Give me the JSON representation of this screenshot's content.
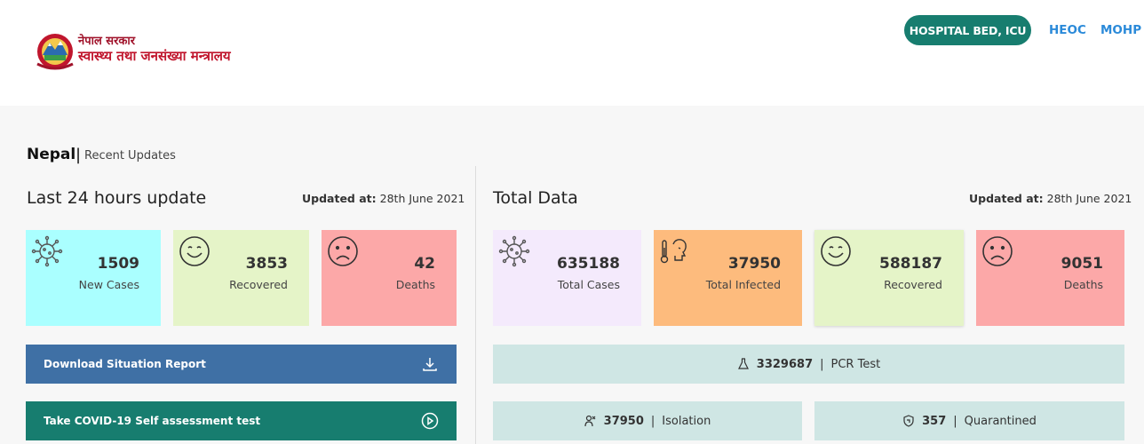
{
  "header": {
    "logo_line1": "नेपाल सरकार",
    "logo_line2": "स्वास्थ्य तथा जनसंख्या मन्त्रालय",
    "nav": {
      "hospital": "HOSPITAL BED, ICU",
      "heoc": "HEOC",
      "mohp": "MOHP"
    }
  },
  "section": {
    "title": "Nepal",
    "separator": "|",
    "subtitle": "Recent Updates"
  },
  "last24": {
    "title": "Last 24 hours update",
    "updated_label": "Updated at:",
    "updated_value": "28th June 2021",
    "cards": [
      {
        "value": "1509",
        "label": "New Cases",
        "color": "#aaffff",
        "icon": "virus-icon"
      },
      {
        "value": "3853",
        "label": "Recovered",
        "color": "#e5f4c8",
        "icon": "smile-icon"
      },
      {
        "value": "42",
        "label": "Deaths",
        "color": "#fca8a8",
        "icon": "sad-icon"
      }
    ],
    "download_label": "Download Situation Report",
    "selftest_label": "Take COVID-19 Self assessment test"
  },
  "total": {
    "title": "Total Data",
    "updated_label": "Updated at:",
    "updated_value": "28th June 2021",
    "cards": [
      {
        "value": "635188",
        "label": "Total Cases",
        "color": "#f4eafc",
        "icon": "virus-icon"
      },
      {
        "value": "37950",
        "label": "Total Infected",
        "color": "#fdbb7d",
        "icon": "thermometer-icon"
      },
      {
        "value": "588187",
        "label": "Recovered",
        "color": "#e5f4c8",
        "icon": "smile-icon"
      },
      {
        "value": "9051",
        "label": "Deaths",
        "color": "#fca8a8",
        "icon": "sad-icon"
      }
    ],
    "pcr": {
      "value": "3329687",
      "sep": "|",
      "label": "PCR Test"
    },
    "isolation": {
      "value": "37950",
      "sep": "|",
      "label": "Isolation"
    },
    "quarantined": {
      "value": "357",
      "sep": "|",
      "label": "Quarantined"
    }
  },
  "colors": {
    "teal": "#177d6f",
    "blue_btn": "#3f70a5",
    "link": "#2b8ad9",
    "info_bg": "#cfe6e4"
  }
}
